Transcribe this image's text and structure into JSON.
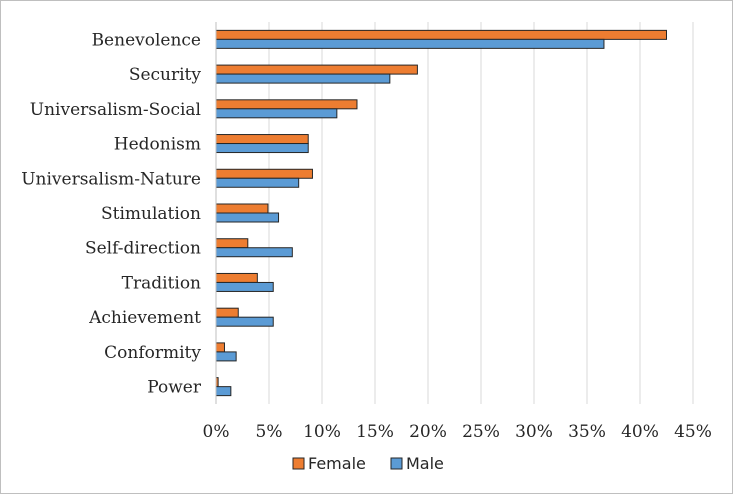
{
  "chart_data": {
    "type": "bar",
    "orientation": "horizontal",
    "categories": [
      "Benevolence",
      "Security",
      "Universalism-Social",
      "Hedonism",
      "Universalism-Nature",
      "Stimulation",
      "Self-direction",
      "Tradition",
      "Achievement",
      "Conformity",
      "Power"
    ],
    "series": [
      {
        "name": "Female",
        "color": "#ed7d31",
        "values": [
          42.5,
          19.0,
          13.3,
          8.7,
          9.1,
          4.9,
          3.0,
          3.9,
          2.1,
          0.8,
          0.2
        ]
      },
      {
        "name": "Male",
        "color": "#5b9bd5",
        "values": [
          36.6,
          16.4,
          11.4,
          8.7,
          7.8,
          5.9,
          7.2,
          5.4,
          5.4,
          1.9,
          1.4
        ]
      }
    ],
    "xticks": [
      "0%",
      "5%",
      "10%",
      "15%",
      "20%",
      "25%",
      "30%",
      "35%",
      "40%",
      "45%"
    ],
    "xlim": [
      0,
      45
    ],
    "grid": "vertical",
    "legend_position": "bottom"
  }
}
